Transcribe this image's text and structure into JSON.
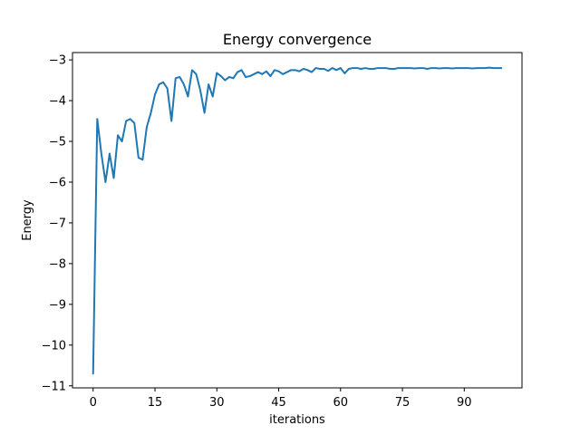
{
  "chart_data": {
    "type": "line",
    "title": "Energy convergence",
    "xlabel": "iterations",
    "ylabel": "Energy",
    "xlim": [
      -5,
      104
    ],
    "ylim": [
      -11.05,
      -2.82
    ],
    "xticks": [
      0,
      15,
      30,
      45,
      60,
      75,
      90
    ],
    "yticks": [
      -3,
      -4,
      -5,
      -6,
      -7,
      -8,
      -9,
      -10,
      -11
    ],
    "ytick_labels": [
      "−3",
      "−4",
      "−5",
      "−6",
      "−7",
      "−8",
      "−9",
      "−10",
      "−11"
    ],
    "grid": false,
    "color": "#1f77b4",
    "series": [
      {
        "x": [
          0,
          1,
          2,
          3,
          4,
          5,
          6,
          7,
          8,
          9,
          10,
          11,
          12,
          13,
          14,
          15,
          16,
          17,
          18,
          19,
          20,
          21,
          22,
          23,
          24,
          25,
          26,
          27,
          28,
          29,
          30,
          31,
          32,
          33,
          34,
          35,
          36,
          37,
          38,
          39,
          40,
          41,
          42,
          43,
          44,
          45,
          46,
          47,
          48,
          49,
          50,
          51,
          52,
          53,
          54,
          55,
          56,
          57,
          58,
          59,
          60,
          61,
          62,
          63,
          64,
          65,
          66,
          67,
          68,
          69,
          70,
          71,
          72,
          73,
          74,
          75,
          76,
          77,
          78,
          79,
          80,
          81,
          82,
          83,
          84,
          85,
          86,
          87,
          88,
          89,
          90,
          91,
          92,
          93,
          94,
          95,
          96,
          97,
          98,
          99
        ],
        "y": [
          -10.7,
          -4.45,
          -5.3,
          -6.0,
          -5.3,
          -5.9,
          -4.85,
          -5.0,
          -4.5,
          -4.45,
          -4.55,
          -5.4,
          -5.45,
          -4.65,
          -4.3,
          -3.85,
          -3.6,
          -3.55,
          -3.7,
          -4.5,
          -3.45,
          -3.42,
          -3.6,
          -3.9,
          -3.25,
          -3.35,
          -3.75,
          -4.3,
          -3.6,
          -3.9,
          -3.32,
          -3.4,
          -3.5,
          -3.42,
          -3.45,
          -3.3,
          -3.25,
          -3.42,
          -3.4,
          -3.35,
          -3.3,
          -3.35,
          -3.28,
          -3.4,
          -3.25,
          -3.28,
          -3.35,
          -3.3,
          -3.25,
          -3.25,
          -3.28,
          -3.22,
          -3.25,
          -3.3,
          -3.2,
          -3.22,
          -3.22,
          -3.27,
          -3.2,
          -3.25,
          -3.2,
          -3.33,
          -3.22,
          -3.2,
          -3.2,
          -3.22,
          -3.2,
          -3.22,
          -3.22,
          -3.2,
          -3.2,
          -3.2,
          -3.22,
          -3.22,
          -3.2,
          -3.2,
          -3.2,
          -3.2,
          -3.21,
          -3.2,
          -3.2,
          -3.22,
          -3.2,
          -3.2,
          -3.21,
          -3.2,
          -3.2,
          -3.21,
          -3.2,
          -3.2,
          -3.2,
          -3.2,
          -3.21,
          -3.2,
          -3.2,
          -3.2,
          -3.19,
          -3.2,
          -3.2,
          -3.2
        ]
      }
    ]
  }
}
